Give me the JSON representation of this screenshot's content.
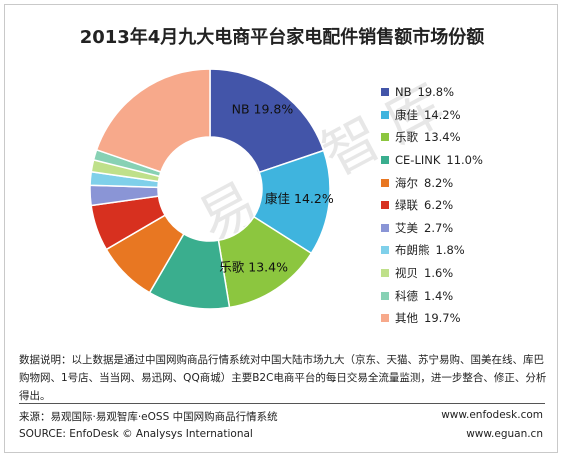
{
  "chart_data": {
    "type": "pie",
    "title": "2013年4月九大电商平台家电配件销售额市场份额",
    "categories": [
      "NB",
      "康佳",
      "乐歌",
      "CE-LINK",
      "海尔",
      "绿联",
      "艾美",
      "布朗熊",
      "视贝",
      "科德",
      "其他"
    ],
    "values": [
      19.8,
      14.2,
      13.4,
      11.0,
      8.2,
      6.2,
      2.7,
      1.8,
      1.6,
      1.4,
      19.7
    ],
    "value_labels": [
      "19.8%",
      "14.2%",
      "13.4%",
      "11.0%",
      "8.2%",
      "6.2%",
      "2.7%",
      "1.8%",
      "1.6%",
      "1.4%",
      "19.7%"
    ],
    "colors": [
      "#4355a9",
      "#3fb4de",
      "#8cc63f",
      "#3aae8e",
      "#e87722",
      "#d7301f",
      "#8a95d6",
      "#7fd0ea",
      "#bfe08a",
      "#87d1b4",
      "#f7a98b"
    ],
    "donut": true,
    "slice_labels": [
      {
        "index": 0,
        "text": "NB 19.8%"
      },
      {
        "index": 1,
        "text": "康佳 14.2%"
      },
      {
        "index": 2,
        "text": "乐歌 13.4%"
      }
    ],
    "legend_position": "right"
  },
  "watermark": "易观智库",
  "note": "数据说明：以上数据是通过中国网购商品行情系统对中国大陆市场九大（京东、天猫、苏宁易购、国美在线、库巴购物网、1号店、当当网、易迅网、QQ商城）主要B2C电商平台的每日交易全流量监测，进一步整合、修正、分析得出。",
  "footer": {
    "source_cn": "来源：易观国际·易观智库·eOSS 中国网购商品行情系统",
    "source_en": "SOURCE: EnfoDesk © Analysys International",
    "url1": "www.enfodesk.com",
    "url2": "www.eguan.cn"
  }
}
